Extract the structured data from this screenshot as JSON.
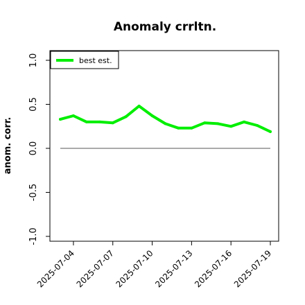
{
  "chart_data": {
    "type": "line",
    "title": "Anomaly crrltn.",
    "xlabel": "",
    "ylabel": "anom. corr.",
    "x": [
      "2025-07-03",
      "2025-07-04",
      "2025-07-05",
      "2025-07-06",
      "2025-07-07",
      "2025-07-08",
      "2025-07-09",
      "2025-07-10",
      "2025-07-11",
      "2025-07-12",
      "2025-07-13",
      "2025-07-14",
      "2025-07-15",
      "2025-07-16",
      "2025-07-17",
      "2025-07-18",
      "2025-07-19"
    ],
    "xticks": [
      "2025-07-04",
      "2025-07-07",
      "2025-07-10",
      "2025-07-13",
      "2025-07-16",
      "2025-07-19"
    ],
    "ylim": [
      -1.0,
      1.0
    ],
    "yticks": [
      "-1.0",
      "-0.5",
      "0.0",
      "0.5",
      "1.0"
    ],
    "series": [
      {
        "name": "best est.",
        "color": "#00ee00",
        "values": [
          0.33,
          0.37,
          0.3,
          0.3,
          0.29,
          0.36,
          0.48,
          0.37,
          0.28,
          0.23,
          0.23,
          0.29,
          0.28,
          0.25,
          0.3,
          0.26,
          0.19
        ]
      }
    ],
    "reference_line": {
      "y": 0.0,
      "color": "#555555"
    },
    "legend": "top-left",
    "grid": false
  }
}
